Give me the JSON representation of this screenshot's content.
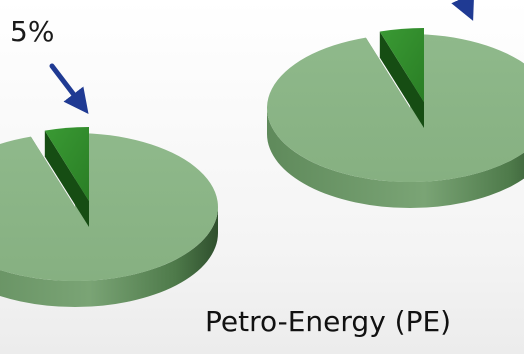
{
  "chart_data": [
    {
      "type": "pie",
      "title": "",
      "slices": [
        {
          "value": 95,
          "color": "#8ab386"
        },
        {
          "value": 5,
          "color": "#2f8a2a"
        }
      ],
      "callout": {
        "text": "5%",
        "slice": 1,
        "arrow_color": "#1f3a93"
      },
      "caption": ""
    },
    {
      "type": "pie",
      "title": "",
      "slices": [
        {
          "value": 95,
          "color": "#8ab386"
        },
        {
          "value": 5,
          "color": "#2f8a2a"
        }
      ],
      "callout": {
        "text": "",
        "slice": 1,
        "arrow_color": "#1f3a93"
      },
      "caption": "Petro-Energy (PE)"
    }
  ]
}
